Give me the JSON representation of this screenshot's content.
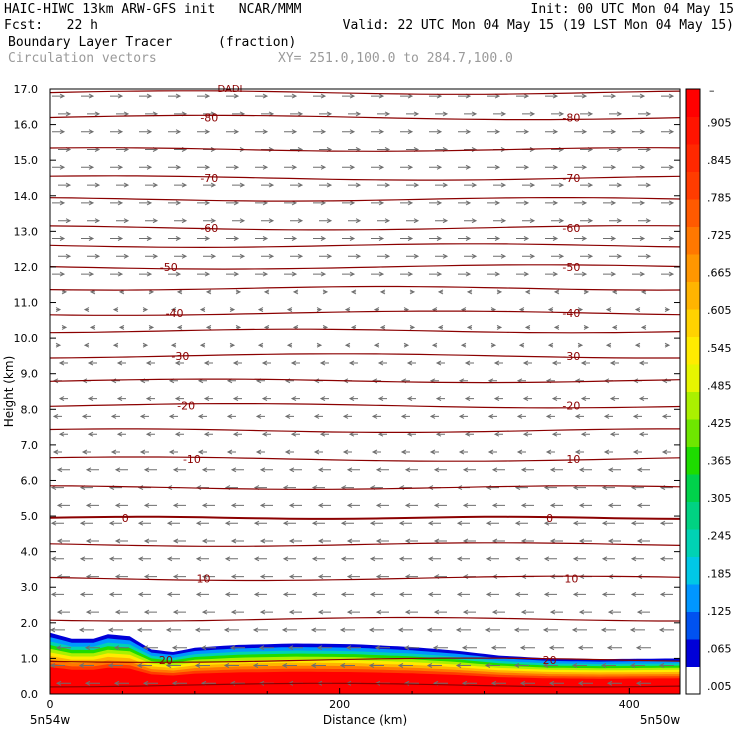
{
  "header": {
    "line1_left": "HAIC-HIWC 13km ARW-GFS init   NCAR/MMM",
    "line1_right": "Init: 00 UTC Mon 04 May 15",
    "line2_left": "Fcst:   22 h",
    "line2_right": "Valid: 22 UTC Mon 04 May 15 (19 LST Mon 04 May 15)",
    "field_name": "Boundary Layer Tracer",
    "field_units": "(fraction)",
    "overlay_name": "Circulation vectors",
    "xy_range": "XY= 251.0,100.0 to 284.7,100.0"
  },
  "colors": {
    "contour": "#8b0000",
    "vector": "#6e6e6e",
    "colorbar": [
      "#ffffff",
      "#0000d8",
      "#0052f0",
      "#0096ff",
      "#00c8e6",
      "#00d2b4",
      "#00d282",
      "#00d24b",
      "#1edc00",
      "#6ee600",
      "#aaf000",
      "#e6f500",
      "#ffeb00",
      "#ffd200",
      "#ffb400",
      "#ff9600",
      "#ff7800",
      "#ff5a00",
      "#ff3c00",
      "#ff2800",
      "#ff1400",
      "#ff0000"
    ]
  },
  "chart_data": {
    "type": "cross-section",
    "ylabel": "Height (km)",
    "xlabel": "Distance (km)",
    "ylim": [
      0,
      17
    ],
    "xlim": [
      0,
      435
    ],
    "yticks": [
      "0.0",
      "1.0",
      "2.0",
      "3.0",
      "4.0",
      "5.0",
      "6.0",
      "7.0",
      "8.0",
      "9.0",
      "10.0",
      "11.0",
      "12.0",
      "13.0",
      "14.0",
      "15.0",
      "16.0",
      "17.0"
    ],
    "xticks": [
      {
        "x": 0,
        "label": "0"
      },
      {
        "x": 200,
        "label": "200"
      },
      {
        "x": 400,
        "label": "400"
      }
    ],
    "x_endpoints": {
      "left": "5n54w",
      "right": "5n50w"
    },
    "colorbar_labels": [
      ".005",
      ".065",
      ".125",
      ".185",
      ".245",
      ".305",
      ".365",
      ".425",
      ".485",
      ".545",
      ".605",
      ".665",
      ".725",
      ".785",
      ".845",
      ".905"
    ],
    "colorbar_top_label": "–",
    "tracer_top_km": [
      {
        "x": 0,
        "y": 1.72
      },
      {
        "x": 15,
        "y": 1.55
      },
      {
        "x": 30,
        "y": 1.55
      },
      {
        "x": 40,
        "y": 1.68
      },
      {
        "x": 55,
        "y": 1.62
      },
      {
        "x": 70,
        "y": 1.25
      },
      {
        "x": 85,
        "y": 1.18
      },
      {
        "x": 100,
        "y": 1.3
      },
      {
        "x": 130,
        "y": 1.38
      },
      {
        "x": 170,
        "y": 1.42
      },
      {
        "x": 210,
        "y": 1.4
      },
      {
        "x": 250,
        "y": 1.32
      },
      {
        "x": 280,
        "y": 1.22
      },
      {
        "x": 310,
        "y": 1.08
      },
      {
        "x": 345,
        "y": 1.0
      },
      {
        "x": 380,
        "y": 0.98
      },
      {
        "x": 435,
        "y": 1.0
      }
    ],
    "temperature_contours": [
      {
        "value": -80,
        "label": "-80",
        "y": 16.2
      },
      {
        "value": -70,
        "label": "-70",
        "y": 14.5
      },
      {
        "value": -60,
        "label": "-60",
        "y": 13.1
      },
      {
        "value": -50,
        "label": "-50",
        "y": 12.0
      },
      {
        "value": -40,
        "label": "-40",
        "y": 10.7
      },
      {
        "value": -30,
        "label": "-30",
        "y": 9.5
      },
      {
        "value": -20,
        "label": "-20",
        "y": 8.1
      },
      {
        "value": -10,
        "label": "-10",
        "y": 6.6
      },
      {
        "value": 0,
        "label": "0",
        "y": 4.95
      },
      {
        "value": 10,
        "label": "10",
        "y": 3.25
      },
      {
        "value": 20,
        "label": "20",
        "y": 0.95
      }
    ],
    "unlabeled_contour_heights_km": [
      16.9,
      15.3,
      13.9,
      12.6,
      11.4,
      10.2,
      8.8,
      7.4,
      5.8,
      4.2,
      2.1,
      0.25
    ],
    "top_label_partial": "DADI"
  }
}
